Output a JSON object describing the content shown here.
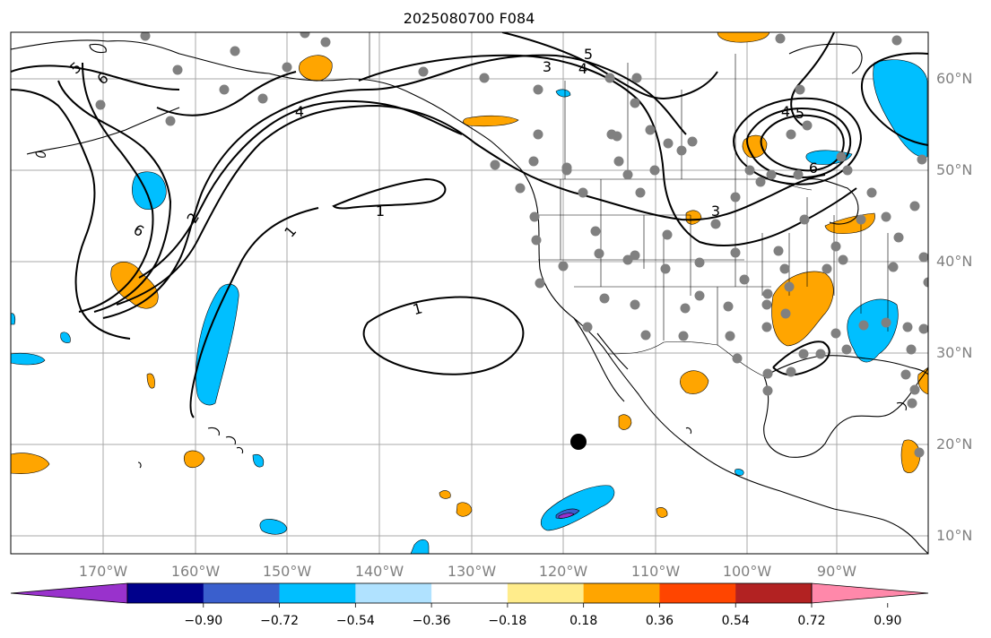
{
  "title": "2025080700 F084",
  "lon_labels": [
    "170°W",
    "160°W",
    "150°W",
    "140°W",
    "130°W",
    "120°W",
    "110°W",
    "100°W",
    "90°W"
  ],
  "lat_labels": [
    "60°N",
    "50°N",
    "40°N",
    "30°N",
    "20°N",
    "10°N"
  ],
  "contour_labels": [
    "1",
    "1",
    "1",
    "2",
    "3",
    "3",
    "4",
    "4",
    "4",
    "5",
    "5",
    "5",
    "6",
    "6",
    "6"
  ],
  "colorbar": {
    "colors": [
      "#9932cc",
      "#00008b",
      "#3a5fcd",
      "#00bfff",
      "#b0e2ff",
      "#ffffff",
      "#ffec8b",
      "#ffa500",
      "#ff4500",
      "#b22222",
      "#ff88aa"
    ],
    "ticks": [
      "−0.90",
      "−0.72",
      "−0.54",
      "−0.36",
      "−0.18",
      "0.18",
      "0.36",
      "0.54",
      "0.72",
      "0.90"
    ]
  },
  "colors": {
    "positive": "#ffa500",
    "negative": "#00bfff",
    "dots": "#808080",
    "marker": "#000000"
  }
}
